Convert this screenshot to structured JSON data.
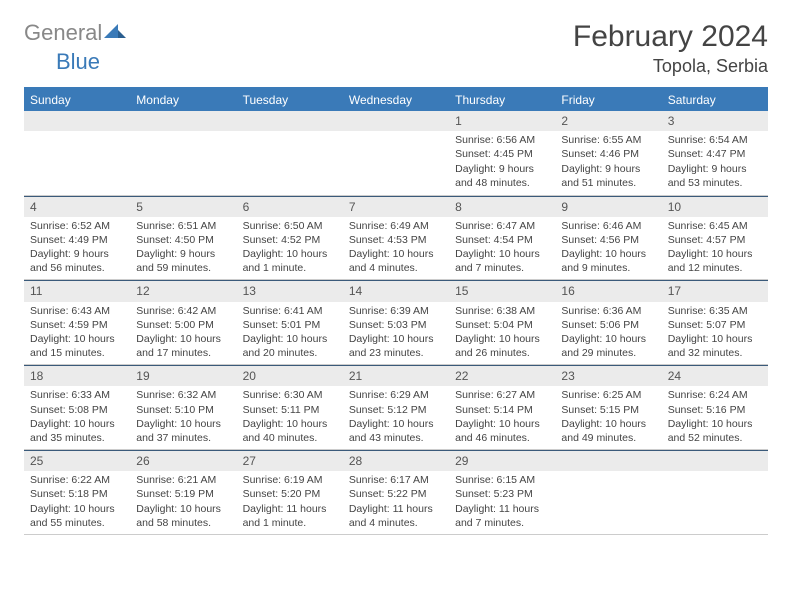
{
  "logo": {
    "textGray": "General",
    "textBlue": "Blue"
  },
  "title": "February 2024",
  "location": "Topola, Serbia",
  "dayHeaders": [
    "Sunday",
    "Monday",
    "Tuesday",
    "Wednesday",
    "Thursday",
    "Friday",
    "Saturday"
  ],
  "colors": {
    "headerBg": "#3a7ab8",
    "headerText": "#ffffff",
    "dayNumBg": "#ebebeb",
    "bodyText": "#444444",
    "logoGray": "#888888",
    "logoBlue": "#3a7ab8",
    "rule": "#3a5a7a"
  },
  "weeks": [
    [
      {
        "n": "",
        "sunrise": "",
        "sunset": "",
        "daylight": ""
      },
      {
        "n": "",
        "sunrise": "",
        "sunset": "",
        "daylight": ""
      },
      {
        "n": "",
        "sunrise": "",
        "sunset": "",
        "daylight": ""
      },
      {
        "n": "",
        "sunrise": "",
        "sunset": "",
        "daylight": ""
      },
      {
        "n": "1",
        "sunrise": "Sunrise: 6:56 AM",
        "sunset": "Sunset: 4:45 PM",
        "daylight": "Daylight: 9 hours and 48 minutes."
      },
      {
        "n": "2",
        "sunrise": "Sunrise: 6:55 AM",
        "sunset": "Sunset: 4:46 PM",
        "daylight": "Daylight: 9 hours and 51 minutes."
      },
      {
        "n": "3",
        "sunrise": "Sunrise: 6:54 AM",
        "sunset": "Sunset: 4:47 PM",
        "daylight": "Daylight: 9 hours and 53 minutes."
      }
    ],
    [
      {
        "n": "4",
        "sunrise": "Sunrise: 6:52 AM",
        "sunset": "Sunset: 4:49 PM",
        "daylight": "Daylight: 9 hours and 56 minutes."
      },
      {
        "n": "5",
        "sunrise": "Sunrise: 6:51 AM",
        "sunset": "Sunset: 4:50 PM",
        "daylight": "Daylight: 9 hours and 59 minutes."
      },
      {
        "n": "6",
        "sunrise": "Sunrise: 6:50 AM",
        "sunset": "Sunset: 4:52 PM",
        "daylight": "Daylight: 10 hours and 1 minute."
      },
      {
        "n": "7",
        "sunrise": "Sunrise: 6:49 AM",
        "sunset": "Sunset: 4:53 PM",
        "daylight": "Daylight: 10 hours and 4 minutes."
      },
      {
        "n": "8",
        "sunrise": "Sunrise: 6:47 AM",
        "sunset": "Sunset: 4:54 PM",
        "daylight": "Daylight: 10 hours and 7 minutes."
      },
      {
        "n": "9",
        "sunrise": "Sunrise: 6:46 AM",
        "sunset": "Sunset: 4:56 PM",
        "daylight": "Daylight: 10 hours and 9 minutes."
      },
      {
        "n": "10",
        "sunrise": "Sunrise: 6:45 AM",
        "sunset": "Sunset: 4:57 PM",
        "daylight": "Daylight: 10 hours and 12 minutes."
      }
    ],
    [
      {
        "n": "11",
        "sunrise": "Sunrise: 6:43 AM",
        "sunset": "Sunset: 4:59 PM",
        "daylight": "Daylight: 10 hours and 15 minutes."
      },
      {
        "n": "12",
        "sunrise": "Sunrise: 6:42 AM",
        "sunset": "Sunset: 5:00 PM",
        "daylight": "Daylight: 10 hours and 17 minutes."
      },
      {
        "n": "13",
        "sunrise": "Sunrise: 6:41 AM",
        "sunset": "Sunset: 5:01 PM",
        "daylight": "Daylight: 10 hours and 20 minutes."
      },
      {
        "n": "14",
        "sunrise": "Sunrise: 6:39 AM",
        "sunset": "Sunset: 5:03 PM",
        "daylight": "Daylight: 10 hours and 23 minutes."
      },
      {
        "n": "15",
        "sunrise": "Sunrise: 6:38 AM",
        "sunset": "Sunset: 5:04 PM",
        "daylight": "Daylight: 10 hours and 26 minutes."
      },
      {
        "n": "16",
        "sunrise": "Sunrise: 6:36 AM",
        "sunset": "Sunset: 5:06 PM",
        "daylight": "Daylight: 10 hours and 29 minutes."
      },
      {
        "n": "17",
        "sunrise": "Sunrise: 6:35 AM",
        "sunset": "Sunset: 5:07 PM",
        "daylight": "Daylight: 10 hours and 32 minutes."
      }
    ],
    [
      {
        "n": "18",
        "sunrise": "Sunrise: 6:33 AM",
        "sunset": "Sunset: 5:08 PM",
        "daylight": "Daylight: 10 hours and 35 minutes."
      },
      {
        "n": "19",
        "sunrise": "Sunrise: 6:32 AM",
        "sunset": "Sunset: 5:10 PM",
        "daylight": "Daylight: 10 hours and 37 minutes."
      },
      {
        "n": "20",
        "sunrise": "Sunrise: 6:30 AM",
        "sunset": "Sunset: 5:11 PM",
        "daylight": "Daylight: 10 hours and 40 minutes."
      },
      {
        "n": "21",
        "sunrise": "Sunrise: 6:29 AM",
        "sunset": "Sunset: 5:12 PM",
        "daylight": "Daylight: 10 hours and 43 minutes."
      },
      {
        "n": "22",
        "sunrise": "Sunrise: 6:27 AM",
        "sunset": "Sunset: 5:14 PM",
        "daylight": "Daylight: 10 hours and 46 minutes."
      },
      {
        "n": "23",
        "sunrise": "Sunrise: 6:25 AM",
        "sunset": "Sunset: 5:15 PM",
        "daylight": "Daylight: 10 hours and 49 minutes."
      },
      {
        "n": "24",
        "sunrise": "Sunrise: 6:24 AM",
        "sunset": "Sunset: 5:16 PM",
        "daylight": "Daylight: 10 hours and 52 minutes."
      }
    ],
    [
      {
        "n": "25",
        "sunrise": "Sunrise: 6:22 AM",
        "sunset": "Sunset: 5:18 PM",
        "daylight": "Daylight: 10 hours and 55 minutes."
      },
      {
        "n": "26",
        "sunrise": "Sunrise: 6:21 AM",
        "sunset": "Sunset: 5:19 PM",
        "daylight": "Daylight: 10 hours and 58 minutes."
      },
      {
        "n": "27",
        "sunrise": "Sunrise: 6:19 AM",
        "sunset": "Sunset: 5:20 PM",
        "daylight": "Daylight: 11 hours and 1 minute."
      },
      {
        "n": "28",
        "sunrise": "Sunrise: 6:17 AM",
        "sunset": "Sunset: 5:22 PM",
        "daylight": "Daylight: 11 hours and 4 minutes."
      },
      {
        "n": "29",
        "sunrise": "Sunrise: 6:15 AM",
        "sunset": "Sunset: 5:23 PM",
        "daylight": "Daylight: 11 hours and 7 minutes."
      },
      {
        "n": "",
        "sunrise": "",
        "sunset": "",
        "daylight": ""
      },
      {
        "n": "",
        "sunrise": "",
        "sunset": "",
        "daylight": ""
      }
    ]
  ]
}
